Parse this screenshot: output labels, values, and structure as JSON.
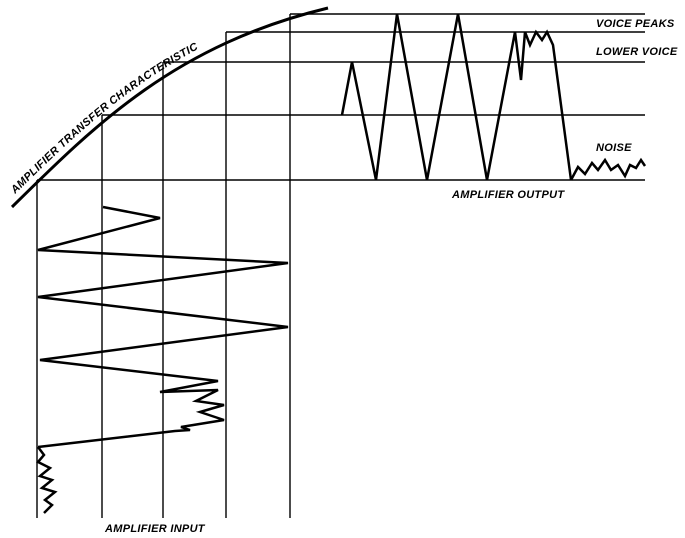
{
  "labels": {
    "transfer_curve": "AMPLIFIER TRANSFER CHARACTERISTIC",
    "voice_peaks": "VOICE PEAKS",
    "lower_voice": "LOWER VOICE",
    "noise": "NOISE",
    "output": "AMPLIFIER OUTPUT",
    "input": "AMPLIFIER INPUT"
  },
  "colors": {
    "ink": "#000000",
    "background": "#ffffff"
  }
}
